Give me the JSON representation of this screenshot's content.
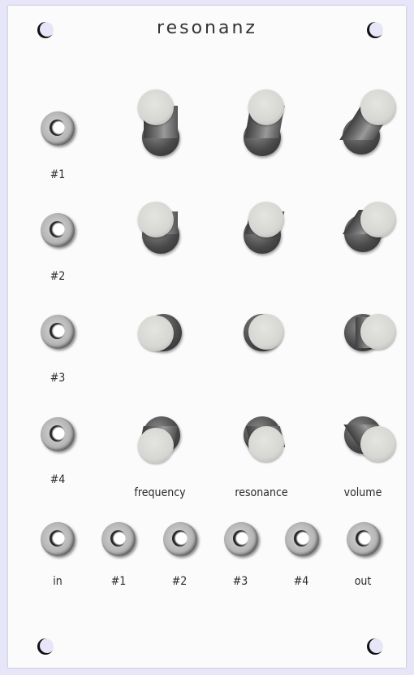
{
  "module": {
    "title": "resonanz"
  },
  "input_labels": [
    "#1",
    "#2",
    "#3",
    "#4"
  ],
  "knob_column_labels": {
    "frequency": "frequency",
    "resonance": "resonance",
    "volume": "volume"
  },
  "bottom_jack_labels": {
    "in": "in",
    "out1": "#1",
    "out2": "#2",
    "out3": "#3",
    "out4": "#4",
    "out": "out"
  },
  "colors": {
    "panel": "#fbfbfb",
    "background": "#e6e6f8",
    "text": "#2a2a2a"
  }
}
